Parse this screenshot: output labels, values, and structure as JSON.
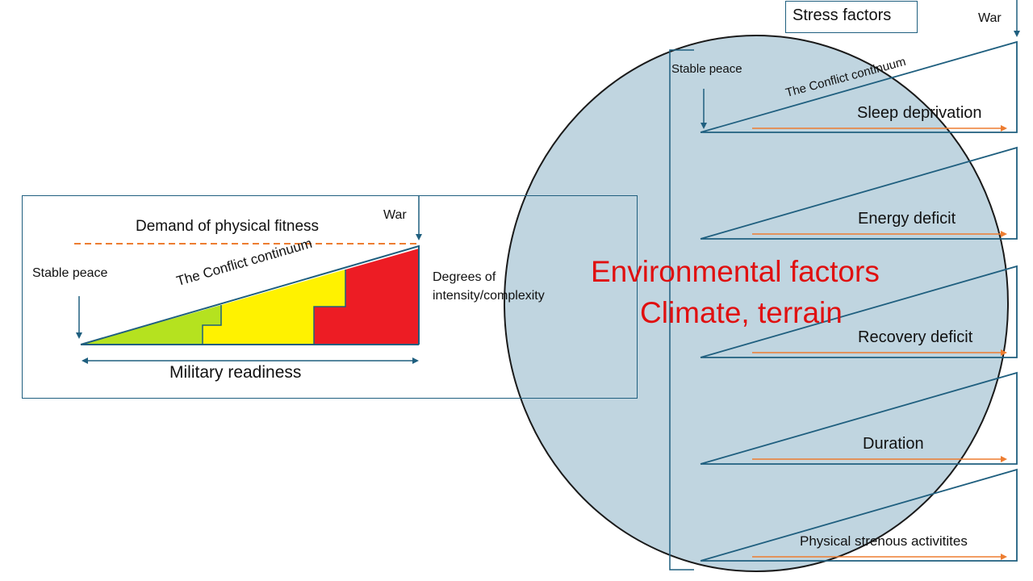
{
  "left_panel": {
    "demand_label": "Demand of physical fitness",
    "war_label": "War",
    "stable_peace_label": "Stable peace",
    "conflict_label": "The Conflict continuum",
    "degrees_label_line1": "Degrees of",
    "degrees_label_line2": "intensity/complexity",
    "readiness_label": "Military readiness",
    "zone_colors": {
      "low": "#b5e21f",
      "mid": "#fff200",
      "high": "#ed1c24"
    },
    "demand_line_color": "#ed7d31"
  },
  "right_panel": {
    "stress_title": "Stress factors",
    "war_label": "War",
    "stable_peace_label": "Stable peace",
    "conflict_label": "The Conflict continuum",
    "factors": [
      {
        "label": "Sleep deprivation"
      },
      {
        "label": "Energy deficit"
      },
      {
        "label": "Recovery deficit"
      },
      {
        "label": "Duration"
      },
      {
        "label": "Physical strenous activitites"
      }
    ],
    "arrow_color": "#ed7d31"
  },
  "environment": {
    "line1": "Environmental factors",
    "line2": "Climate, terrain",
    "text_color": "#e01010",
    "circle_fill": "#b7cfdc"
  },
  "stroke_color": "#1f5f7f"
}
